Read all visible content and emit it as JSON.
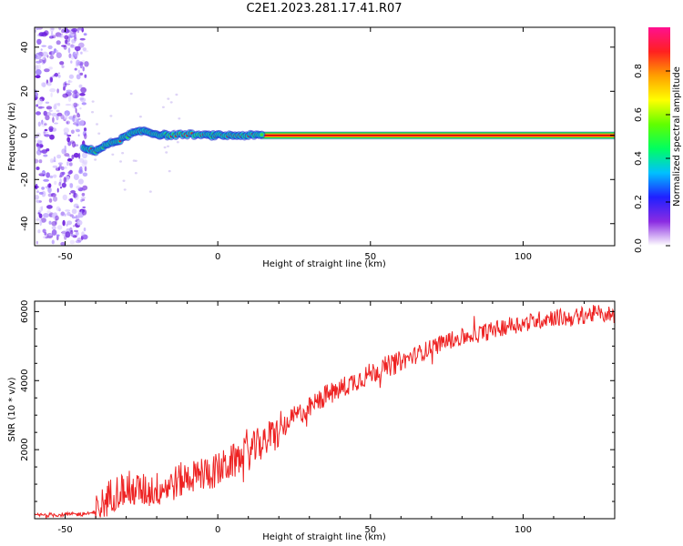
{
  "title": "C2E1.2023.281.17.41.R07",
  "chart_data": [
    {
      "type": "heatmap",
      "title": "C2E1.2023.281.17.41.R07",
      "xlabel": "Height of straight line (km)",
      "ylabel": "Frequency (Hz)",
      "xlim": [
        -60,
        130
      ],
      "ylim": [
        -50,
        49
      ],
      "x_ticks": [
        -50,
        0,
        50,
        100
      ],
      "y_ticks": [
        -40,
        -20,
        0,
        20,
        40
      ],
      "colorbar": {
        "label": "Normalized spectral amplitude",
        "range": [
          0,
          1
        ],
        "ticks": [
          "0.0",
          "0.2",
          "0.4",
          "0.6",
          "0.8"
        ],
        "colormap": [
          "#ffffff",
          "#8a2be2",
          "#2020ff",
          "#00c0ff",
          "#00ff60",
          "#60ff00",
          "#ffff00",
          "#ffa000",
          "#ff2020",
          "#ff1090"
        ]
      },
      "features": {
        "noise_region_x": [
          -60,
          -43
        ],
        "carrier_line_y_hz": 0,
        "carrier_band_hz": [
          -1.5,
          1.5
        ],
        "approach_trace": [
          [
            -44,
            -6
          ],
          [
            -40,
            -7
          ],
          [
            -36,
            -4
          ],
          [
            -32,
            -2
          ],
          [
            -28,
            1
          ],
          [
            -24,
            2
          ],
          [
            -20,
            0.5
          ],
          [
            -16,
            0
          ],
          [
            -10,
            0.5
          ],
          [
            -4,
            0
          ],
          [
            0,
            0
          ],
          [
            5,
            0
          ],
          [
            10,
            0
          ],
          [
            15,
            0
          ]
        ]
      },
      "grid": false
    },
    {
      "type": "line",
      "xlabel": "Height of straight line (km)",
      "ylabel": "SNR (10 * v/v)",
      "xlim": [
        -60,
        130
      ],
      "ylim": [
        0,
        6300
      ],
      "x_ticks": [
        -50,
        0,
        50,
        100
      ],
      "y_ticks": [
        2000,
        4000,
        6000
      ],
      "color": "#ee2222",
      "grid": false,
      "series": [
        {
          "x": [
            -60,
            -50,
            -45,
            -40,
            -35,
            -30,
            -25,
            -20,
            -15,
            -10,
            -5,
            0,
            5,
            10,
            15,
            20,
            25,
            30,
            35,
            40,
            45,
            50,
            55,
            60,
            65,
            70,
            75,
            80,
            85,
            90,
            95,
            100,
            105,
            110,
            115,
            120,
            125,
            130
          ],
          "values": [
            100,
            120,
            130,
            180,
            700,
            900,
            800,
            850,
            1000,
            1200,
            1300,
            1400,
            1650,
            1900,
            2250,
            2500,
            2950,
            3200,
            3550,
            3750,
            4000,
            4200,
            4400,
            4550,
            4750,
            4950,
            5150,
            5250,
            5350,
            5450,
            5600,
            5650,
            5750,
            5850,
            5800,
            5900,
            5950,
            5900
          ]
        }
      ]
    }
  ]
}
